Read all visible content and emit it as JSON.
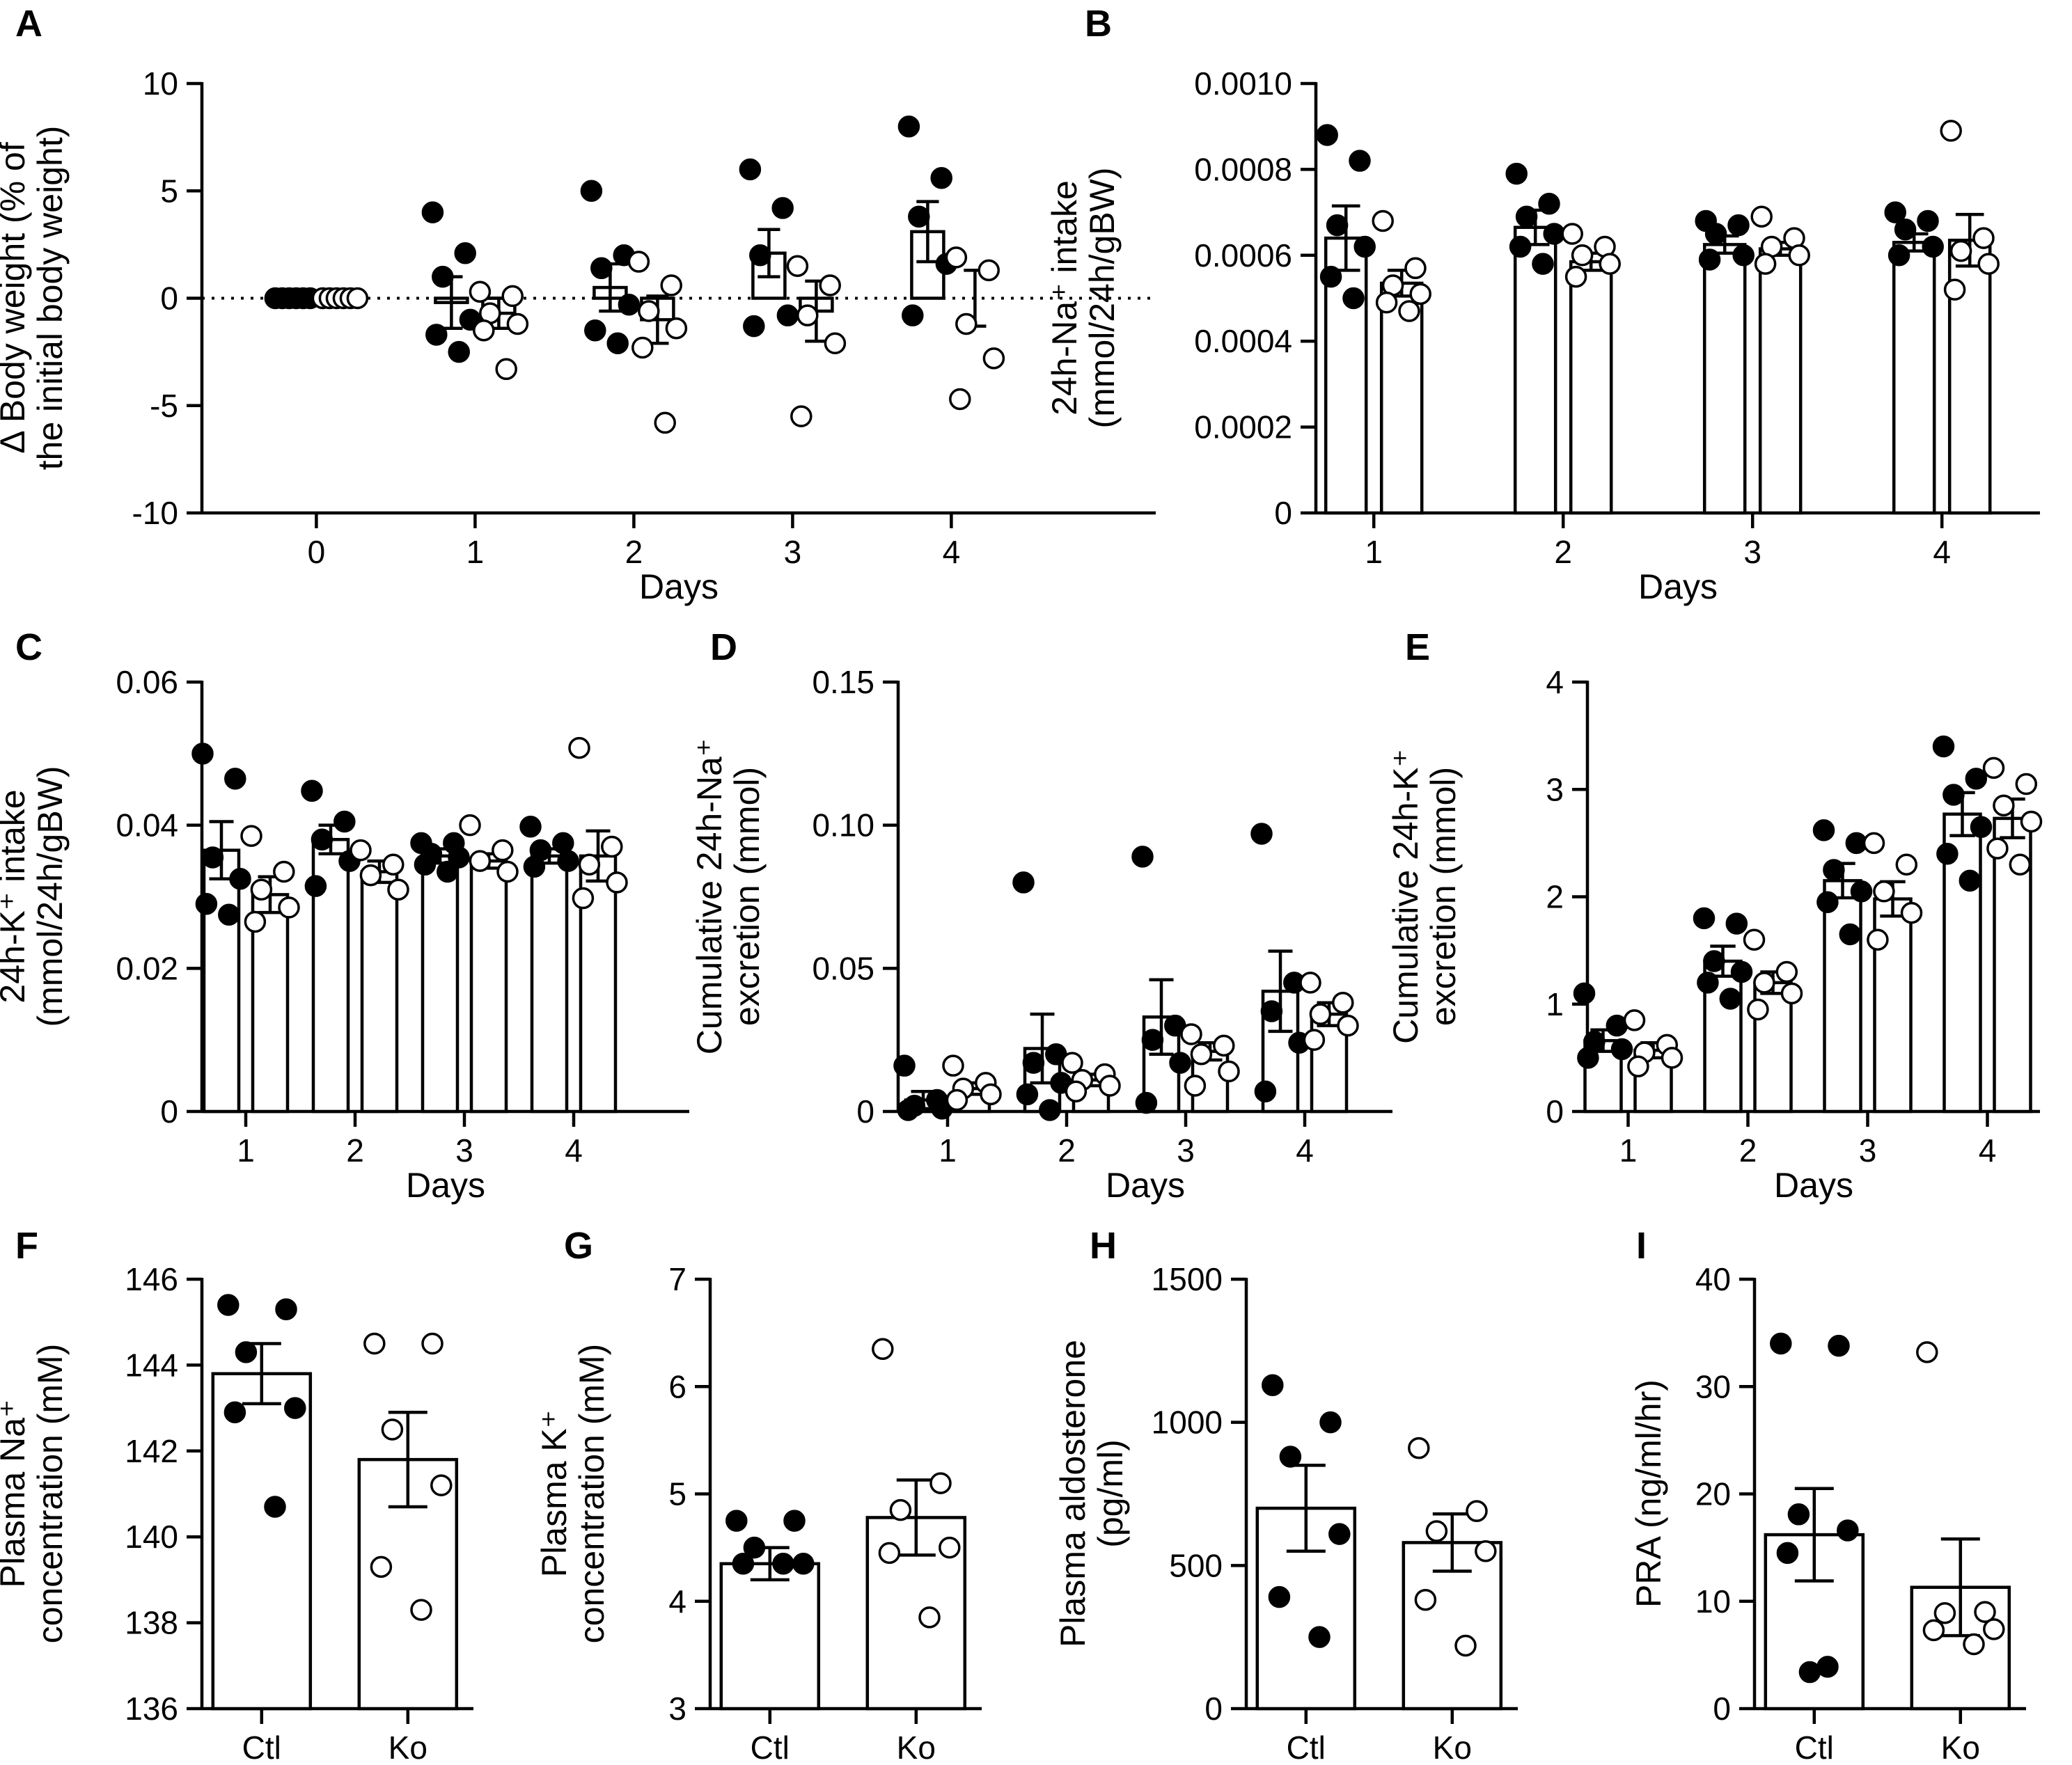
{
  "chart_data": [
    {
      "id": "A",
      "label": "A",
      "type": "bar",
      "title": "",
      "ylabel_lines": [
        "Δ Body weight (% of",
        "the initial body weight)"
      ],
      "xlabel": "Days",
      "ylim": [
        -10,
        10
      ],
      "yticks": [
        -10,
        -5,
        0,
        5,
        10
      ],
      "ytick_labels": [
        "-10",
        "-5",
        "0",
        "5",
        "10"
      ],
      "categories": [
        "0",
        "1",
        "2",
        "3",
        "4"
      ],
      "reference_line_y": 0,
      "series": [
        {
          "name": "Ctl",
          "marker": "filled",
          "means": [
            0,
            -0.2,
            0.5,
            2.1,
            3.1
          ],
          "sems": [
            0,
            1.2,
            1.1,
            1.1,
            1.4
          ],
          "points": [
            [
              0,
              0,
              0,
              0,
              0,
              0
            ],
            [
              4.0,
              2.1,
              1.0,
              -1.0,
              -1.7,
              -2.5
            ],
            [
              5.0,
              2.0,
              1.4,
              -0.3,
              -1.5,
              -2.1
            ],
            [
              6.0,
              4.2,
              2.0,
              -0.8,
              -1.3
            ],
            [
              8.0,
              5.6,
              3.8,
              1.6,
              -0.8
            ]
          ]
        },
        {
          "name": "Ko",
          "marker": "open",
          "means": [
            0,
            -0.7,
            -1.0,
            -0.6,
            0
          ],
          "sems": [
            0,
            0.7,
            1.1,
            1.4,
            1.3
          ],
          "points": [
            [
              0,
              0,
              0,
              0,
              0,
              0
            ],
            [
              0.3,
              0.1,
              -0.7,
              -1.2,
              -1.5,
              -3.3
            ],
            [
              1.7,
              0.6,
              -0.6,
              -1.4,
              -2.3,
              -5.8
            ],
            [
              1.5,
              0.6,
              -0.8,
              -2.1,
              -5.5
            ],
            [
              1.9,
              1.3,
              -1.2,
              -2.8,
              -4.7
            ]
          ]
        }
      ]
    },
    {
      "id": "B",
      "label": "B",
      "type": "bar",
      "title": "",
      "ylabel_lines": [
        "24h-Na⁺ intake",
        "(mmol/24h/gBW)"
      ],
      "xlabel": "Days",
      "ylim": [
        0,
        0.001
      ],
      "yticks": [
        0,
        0.0002,
        0.0004,
        0.0006,
        0.0008,
        0.001
      ],
      "ytick_labels": [
        "0",
        "0.0002",
        "0.0004",
        "0.0006",
        "0.0008",
        "0.0010"
      ],
      "categories": [
        "1",
        "2",
        "3",
        "4"
      ],
      "series": [
        {
          "name": "Ctl",
          "marker": "filled",
          "means": [
            0.00064,
            0.000665,
            0.000625,
            0.00063
          ],
          "sems": [
            7.5e-05,
            4e-05,
            2e-05,
            2e-05
          ],
          "points": [
            [
              0.00088,
              0.00082,
              0.00067,
              0.00062,
              0.00055,
              0.0005
            ],
            [
              0.00079,
              0.00072,
              0.00069,
              0.00065,
              0.00062,
              0.00058
            ],
            [
              0.00068,
              0.00067,
              0.00065,
              0.0006,
              0.00059
            ],
            [
              0.0007,
              0.00068,
              0.00066,
              0.00062,
              0.0006
            ]
          ]
        },
        {
          "name": "Ko",
          "marker": "open",
          "means": [
            0.000535,
            0.000585,
            0.000615,
            0.000635
          ],
          "sems": [
            3e-05,
            2e-05,
            1.5e-05,
            6e-05
          ],
          "points": [
            [
              0.00068,
              0.00057,
              0.00053,
              0.00051,
              0.00049,
              0.00047
            ],
            [
              0.00065,
              0.00062,
              0.0006,
              0.00058,
              0.00055
            ],
            [
              0.00069,
              0.00064,
              0.00062,
              0.0006,
              0.00058
            ],
            [
              0.00089,
              0.00064,
              0.00061,
              0.00058,
              0.00052
            ]
          ]
        }
      ]
    },
    {
      "id": "C",
      "label": "C",
      "type": "bar",
      "title": "",
      "ylabel_lines": [
        "24h-K⁺ intake",
        "(mmol/24h/gBW)"
      ],
      "xlabel": "Days",
      "ylim": [
        0,
        0.06
      ],
      "yticks": [
        0,
        0.02,
        0.04,
        0.06
      ],
      "ytick_labels": [
        "0",
        "0.02",
        "0.04",
        "0.06"
      ],
      "categories": [
        "1",
        "2",
        "3",
        "4"
      ],
      "series": [
        {
          "name": "Ctl",
          "marker": "filled",
          "means": [
            0.0365,
            0.038,
            0.0357,
            0.0357
          ],
          "sems": [
            0.004,
            0.002,
            0.001,
            0.001
          ],
          "points": [
            [
              0.05,
              0.0465,
              0.0355,
              0.0325,
              0.029,
              0.0275
            ],
            [
              0.0448,
              0.0405,
              0.038,
              0.035,
              0.0315
            ],
            [
              0.0375,
              0.0375,
              0.036,
              0.0355,
              0.0345,
              0.0335
            ],
            [
              0.0398,
              0.0375,
              0.0365,
              0.035,
              0.0342
            ]
          ]
        },
        {
          "name": "Ko",
          "marker": "open",
          "means": [
            0.0303,
            0.0335,
            0.035,
            0.0357
          ],
          "sems": [
            0.0025,
            0.0015,
            0.001,
            0.0035
          ],
          "points": [
            [
              0.0385,
              0.0335,
              0.031,
              0.0285,
              0.0265
            ],
            [
              0.0365,
              0.0345,
              0.033,
              0.031
            ],
            [
              0.04,
              0.0365,
              0.035,
              0.0335
            ],
            [
              0.0508,
              0.037,
              0.0345,
              0.032,
              0.0298
            ]
          ]
        }
      ]
    },
    {
      "id": "D",
      "label": "D",
      "type": "bar",
      "title": "",
      "ylabel_lines": [
        "Cumulative 24h-Na⁺",
        "excretion (mmol)"
      ],
      "xlabel": "Days",
      "ylim": [
        0,
        0.15
      ],
      "yticks": [
        0,
        0.05,
        0.1,
        0.15
      ],
      "ytick_labels": [
        "0",
        "0.05",
        "0.10",
        "0.15"
      ],
      "categories": [
        "1",
        "2",
        "3",
        "4"
      ],
      "series": [
        {
          "name": "Ctl",
          "marker": "filled",
          "means": [
            0.004,
            0.022,
            0.033,
            0.042
          ],
          "sems": [
            0.003,
            0.012,
            0.013,
            0.014
          ],
          "points": [
            [
              0.016,
              0.004,
              0.002,
              0.001,
              0.0005
            ],
            [
              0.08,
              0.02,
              0.017,
              0.01,
              0.006,
              0.0005
            ],
            [
              0.089,
              0.03,
              0.025,
              0.017,
              0.003
            ],
            [
              0.097,
              0.045,
              0.035,
              0.024,
              0.007
            ]
          ]
        },
        {
          "name": "Ko",
          "marker": "open",
          "means": [
            0.008,
            0.011,
            0.021,
            0.034
          ],
          "sems": [
            0.002,
            0.002,
            0.003,
            0.004
          ],
          "points": [
            [
              0.016,
              0.01,
              0.008,
              0.006,
              0.004
            ],
            [
              0.017,
              0.013,
              0.011,
              0.009,
              0.007
            ],
            [
              0.027,
              0.023,
              0.02,
              0.014,
              0.009
            ],
            [
              0.045,
              0.038,
              0.034,
              0.03,
              0.025
            ]
          ]
        }
      ]
    },
    {
      "id": "E",
      "label": "E",
      "type": "bar",
      "title": "",
      "ylabel_lines": [
        "Cumulative 24h-K⁺",
        "excretion (mmol)"
      ],
      "xlabel": "Days",
      "ylim": [
        0,
        4
      ],
      "yticks": [
        0,
        1,
        2,
        3,
        4
      ],
      "ytick_labels": [
        "0",
        "1",
        "2",
        "3",
        "4"
      ],
      "categories": [
        "1",
        "2",
        "3",
        "4"
      ],
      "series": [
        {
          "name": "Ctl",
          "marker": "filled",
          "means": [
            0.66,
            1.4,
            2.15,
            2.77
          ],
          "sems": [
            0.1,
            0.14,
            0.16,
            0.2
          ],
          "points": [
            [
              1.1,
              0.8,
              0.65,
              0.58,
              0.5
            ],
            [
              1.8,
              1.75,
              1.4,
              1.3,
              1.2,
              1.05
            ],
            [
              2.62,
              2.5,
              2.25,
              2.05,
              1.95,
              1.65
            ],
            [
              3.4,
              3.1,
              2.95,
              2.65,
              2.4,
              2.15
            ]
          ]
        },
        {
          "name": "Ko",
          "marker": "open",
          "means": [
            0.57,
            1.2,
            1.98,
            2.73
          ],
          "sems": [
            0.07,
            0.1,
            0.16,
            0.18
          ],
          "points": [
            [
              0.85,
              0.62,
              0.55,
              0.5,
              0.42
            ],
            [
              1.6,
              1.3,
              1.2,
              1.1,
              0.95
            ],
            [
              2.5,
              2.3,
              2.05,
              1.85,
              1.6
            ],
            [
              3.2,
              3.05,
              2.85,
              2.7,
              2.45,
              2.3
            ]
          ]
        }
      ]
    },
    {
      "id": "F",
      "label": "F",
      "type": "bar",
      "title": "",
      "ylabel_lines": [
        "Plasma Na⁺",
        "concentration (mM)"
      ],
      "xlabel": "",
      "ylim": [
        136,
        146
      ],
      "yticks": [
        136,
        138,
        140,
        142,
        144,
        146
      ],
      "ytick_labels": [
        "136",
        "138",
        "140",
        "142",
        "144",
        "146"
      ],
      "categories": [
        "Ctl",
        "Ko"
      ],
      "groups": [
        {
          "name": "Ctl",
          "marker": "filled",
          "mean": 143.8,
          "sem": 0.7,
          "points": [
            145.4,
            145.3,
            144.3,
            143.0,
            142.9,
            140.7
          ]
        },
        {
          "name": "Ko",
          "marker": "open",
          "mean": 141.8,
          "sem": 1.1,
          "points": [
            144.5,
            144.5,
            142.5,
            141.2,
            139.3,
            138.3
          ]
        }
      ]
    },
    {
      "id": "G",
      "label": "G",
      "type": "bar",
      "title": "",
      "ylabel_lines": [
        "Plasma K⁺",
        "concentration (mM)"
      ],
      "xlabel": "",
      "ylim": [
        3,
        7
      ],
      "yticks": [
        3,
        4,
        5,
        6,
        7
      ],
      "ytick_labels": [
        "3",
        "4",
        "5",
        "6",
        "7"
      ],
      "categories": [
        "Ctl",
        "Ko"
      ],
      "groups": [
        {
          "name": "Ctl",
          "marker": "filled",
          "mean": 4.35,
          "sem": 0.15,
          "points": [
            4.75,
            4.75,
            4.5,
            4.35,
            4.35,
            4.35
          ]
        },
        {
          "name": "Ko",
          "marker": "open",
          "mean": 4.78,
          "sem": 0.35,
          "points": [
            6.35,
            5.1,
            4.85,
            4.5,
            4.45,
            3.85
          ]
        }
      ]
    },
    {
      "id": "H",
      "label": "H",
      "type": "bar",
      "title": "",
      "ylabel_lines": [
        "Plasma aldosterone",
        "(pg/ml)"
      ],
      "xlabel": "",
      "ylim": [
        0,
        1500
      ],
      "yticks": [
        0,
        500,
        1000,
        1500
      ],
      "ytick_labels": [
        "0",
        "500",
        "1000",
        "1500"
      ],
      "categories": [
        "Ctl",
        "Ko"
      ],
      "groups": [
        {
          "name": "Ctl",
          "marker": "filled",
          "mean": 700,
          "sem": 150,
          "points": [
            1130,
            1000,
            880,
            610,
            390,
            250
          ]
        },
        {
          "name": "Ko",
          "marker": "open",
          "mean": 580,
          "sem": 100,
          "points": [
            910,
            690,
            620,
            550,
            380,
            220
          ]
        }
      ]
    },
    {
      "id": "I",
      "label": "I",
      "type": "bar",
      "title": "",
      "ylabel_lines": [
        "PRA (ng/ml/hr)"
      ],
      "xlabel": "",
      "ylim": [
        0,
        40
      ],
      "yticks": [
        0,
        10,
        20,
        30,
        40
      ],
      "ytick_labels": [
        "0",
        "10",
        "20",
        "30",
        "40"
      ],
      "categories": [
        "Ctl",
        "Ko"
      ],
      "groups": [
        {
          "name": "Ctl",
          "marker": "filled",
          "mean": 16.2,
          "sem": 4.3,
          "points": [
            34.0,
            33.8,
            18.1,
            16.6,
            14.5,
            3.9,
            3.4
          ]
        },
        {
          "name": "Ko",
          "marker": "open",
          "mean": 11.3,
          "sem": 4.5,
          "points": [
            33.2,
            9.0,
            8.9,
            7.4,
            7.3,
            6.0
          ]
        }
      ]
    }
  ]
}
